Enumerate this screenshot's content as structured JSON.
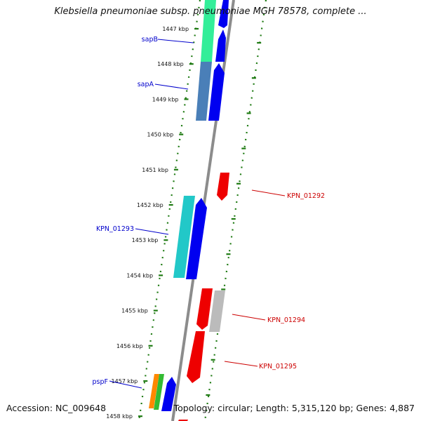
{
  "header": {
    "title": "Klebsiella pneumoniae subsp. pneumoniae MGH 78578, complete ..."
  },
  "footer": {
    "accession": "Accession: NC_009648",
    "stats": "Topology: circular; Length: 5,315,120 bp; Genes: 4,887"
  },
  "colors": {
    "backbone": "#8c8c8c",
    "ruler_dots": "#1e7a12",
    "label_left": "#0000cc",
    "label_right": "#cc0000",
    "gene_forward": "#0000f0",
    "gene_reverse": "#ee0000"
  },
  "ruler": {
    "ticks": [
      "1447 kbp",
      "1448 kbp",
      "1449 kbp",
      "1450 kbp",
      "1451 kbp",
      "1452 kbp",
      "1453 kbp",
      "1454 kbp",
      "1455 kbp",
      "1456 kbp",
      "1457 kbp",
      "1458 kbp"
    ]
  },
  "genes": [
    {
      "label": "sapB",
      "side": "left",
      "strand": "forward",
      "cog_color": "#33ee99"
    },
    {
      "label": "sapA",
      "side": "left",
      "strand": "forward",
      "cog_color": "#4a7fb8"
    },
    {
      "label": "KPN_01292",
      "side": "right",
      "strand": "reverse",
      "cog_color": ""
    },
    {
      "label": "KPN_01293",
      "side": "left",
      "strand": "forward",
      "cog_color": "#22c8c8"
    },
    {
      "label": "KPN_01294",
      "side": "right",
      "strand": "reverse",
      "cog_color": "#bbbbbb"
    },
    {
      "label": "KPN_01295",
      "side": "right",
      "strand": "reverse",
      "cog_color": ""
    },
    {
      "label": "pspF",
      "side": "left",
      "strand": "forward",
      "cog_color": "#ff8800"
    }
  ]
}
